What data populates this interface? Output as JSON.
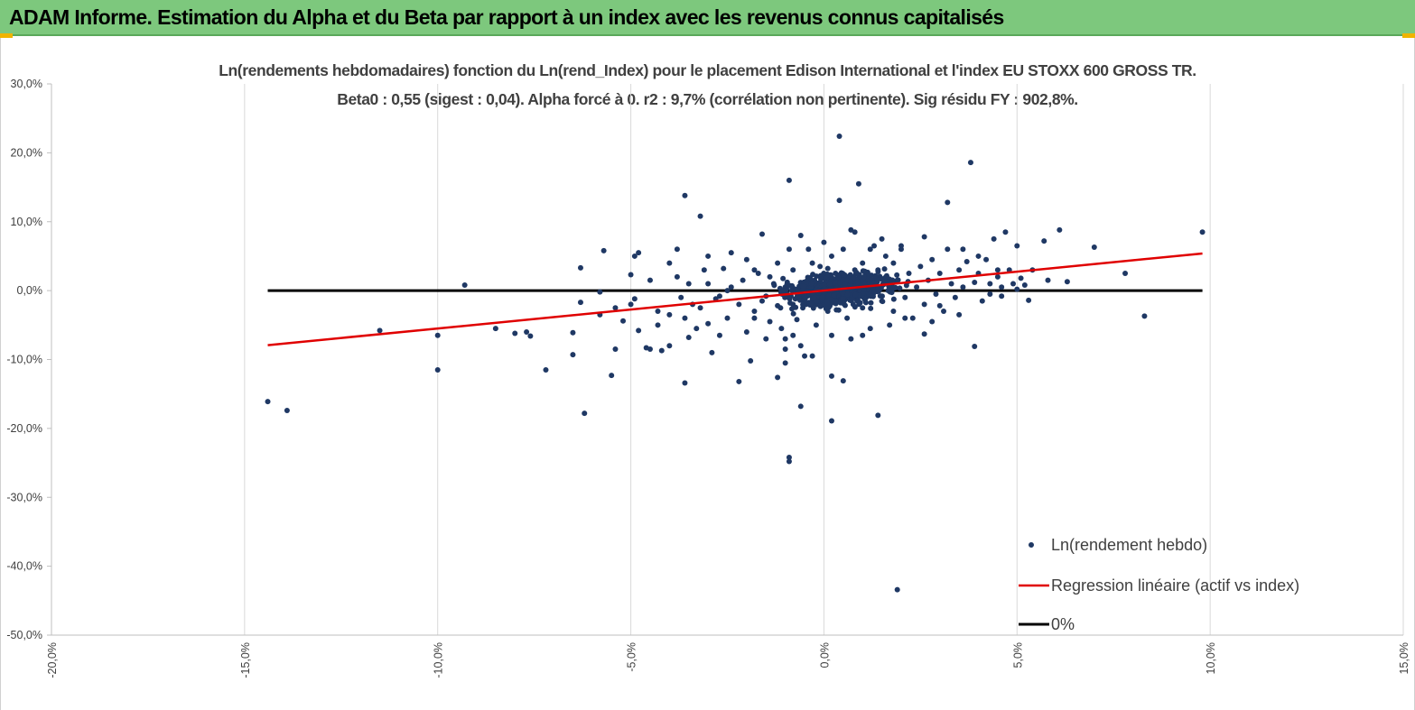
{
  "banner": {
    "title": "ADAM Informe. Estimation du Alpha et du Beta par rapport à un index avec les revenus connus capitalisés"
  },
  "colors": {
    "banner": "#7dc87d",
    "points": "#1f3864",
    "regression": "#e00000",
    "zero": "#000000",
    "grid": "#d9d9d9"
  },
  "chart_data": {
    "type": "scatter",
    "title": "Ln(rendements hebdomadaires) fonction du Ln(rend_Index) pour le placement Edison International et l'index EU STOXX 600 GROSS TR.",
    "subtitle": "Beta0 : 0,55 (sigest : 0,04).  Alpha forcé à 0. r2 : 9,7% (corrélation non pertinente). Sig résidu FY : 902,8%.",
    "xlabel": "",
    "ylabel": "",
    "xlim": [
      -0.2,
      0.15
    ],
    "ylim": [
      -0.5,
      0.3
    ],
    "x_ticks": [
      -0.2,
      -0.15,
      -0.1,
      -0.05,
      0.0,
      0.05,
      0.1,
      0.15
    ],
    "y_ticks": [
      0.3,
      0.2,
      0.1,
      0.0,
      -0.1,
      -0.2,
      -0.3,
      -0.4,
      -0.5
    ],
    "x_tick_labels": [
      "-20,0%",
      "-15,0%",
      "-10,0%",
      "-5,0%",
      "0,0%",
      "5,0%",
      "10,0%",
      "15,0%"
    ],
    "y_tick_labels": [
      "30,0%",
      "20,0%",
      "10,0%",
      "0,0%",
      "-10,0%",
      "-20,0%",
      "-30,0%",
      "-40,0%",
      "-50,0%"
    ],
    "grid": "vertical",
    "legend_position": "bottom-right",
    "series": [
      {
        "name": "Ln(rendement hebdo)",
        "kind": "scatter",
        "points": [
          [
            -0.144,
            -0.161
          ],
          [
            -0.139,
            -0.174
          ],
          [
            -0.115,
            -0.058
          ],
          [
            -0.1,
            -0.065
          ],
          [
            -0.1,
            -0.115
          ],
          [
            -0.093,
            0.008
          ],
          [
            -0.085,
            -0.055
          ],
          [
            -0.08,
            -0.062
          ],
          [
            -0.077,
            -0.06
          ],
          [
            -0.076,
            -0.066
          ],
          [
            -0.072,
            -0.115
          ],
          [
            -0.065,
            -0.061
          ],
          [
            -0.065,
            -0.093
          ],
          [
            -0.063,
            0.033
          ],
          [
            -0.063,
            -0.017
          ],
          [
            -0.062,
            -0.178
          ],
          [
            -0.058,
            -0.035
          ],
          [
            -0.058,
            -0.002
          ],
          [
            -0.057,
            0.058
          ],
          [
            -0.055,
            -0.123
          ],
          [
            -0.054,
            -0.025
          ],
          [
            -0.054,
            -0.085
          ],
          [
            -0.052,
            -0.044
          ],
          [
            -0.05,
            0.023
          ],
          [
            -0.05,
            -0.02
          ],
          [
            -0.049,
            -0.012
          ],
          [
            -0.048,
            -0.058
          ],
          [
            -0.046,
            -0.083
          ],
          [
            -0.045,
            -0.085
          ],
          [
            -0.049,
            0.05
          ],
          [
            -0.048,
            0.055
          ],
          [
            -0.045,
            0.015
          ],
          [
            -0.043,
            -0.03
          ],
          [
            -0.043,
            -0.05
          ],
          [
            -0.042,
            -0.087
          ],
          [
            -0.04,
            -0.08
          ],
          [
            -0.04,
            -0.035
          ],
          [
            -0.038,
            0.02
          ],
          [
            -0.037,
            -0.01
          ],
          [
            -0.036,
            -0.04
          ],
          [
            -0.035,
            -0.068
          ],
          [
            -0.034,
            -0.02
          ],
          [
            -0.033,
            -0.055
          ],
          [
            -0.032,
            -0.025
          ],
          [
            -0.03,
            0.01
          ],
          [
            -0.03,
            -0.048
          ],
          [
            -0.028,
            -0.012
          ],
          [
            -0.025,
            0.0
          ],
          [
            -0.036,
            0.138
          ],
          [
            -0.032,
            0.108
          ],
          [
            -0.029,
            -0.09
          ],
          [
            -0.036,
            -0.134
          ],
          [
            -0.04,
            0.04
          ],
          [
            -0.038,
            0.06
          ],
          [
            -0.035,
            0.01
          ],
          [
            -0.03,
            0.05
          ],
          [
            -0.027,
            -0.008
          ],
          [
            -0.026,
            0.032
          ],
          [
            -0.025,
            -0.04
          ],
          [
            -0.024,
            0.005
          ],
          [
            -0.022,
            -0.02
          ],
          [
            -0.021,
            0.015
          ],
          [
            -0.02,
            -0.06
          ],
          [
            -0.019,
            -0.102
          ],
          [
            -0.018,
            -0.03
          ],
          [
            -0.017,
            0.025
          ],
          [
            -0.016,
            0.082
          ],
          [
            -0.015,
            -0.008
          ],
          [
            -0.014,
            -0.045
          ],
          [
            -0.013,
            0.01
          ],
          [
            -0.012,
            -0.022
          ],
          [
            -0.015,
            -0.07
          ],
          [
            -0.022,
            -0.132
          ],
          [
            -0.02,
            0.045
          ],
          [
            -0.018,
            0.03
          ],
          [
            -0.016,
            -0.015
          ],
          [
            -0.014,
            0.02
          ],
          [
            -0.012,
            -0.126
          ],
          [
            -0.011,
            -0.055
          ],
          [
            -0.01,
            0.005
          ],
          [
            -0.01,
            -0.07
          ],
          [
            -0.009,
            0.06
          ],
          [
            -0.008,
            -0.02
          ],
          [
            -0.008,
            0.03
          ],
          [
            -0.007,
            -0.042
          ],
          [
            -0.009,
            0.16
          ],
          [
            -0.009,
            -0.248
          ],
          [
            -0.009,
            -0.242
          ],
          [
            -0.006,
            0.08
          ],
          [
            -0.006,
            -0.168
          ],
          [
            -0.01,
            -0.085
          ],
          [
            -0.01,
            -0.105
          ],
          [
            -0.005,
            -0.095
          ],
          [
            -0.003,
            -0.095
          ],
          [
            -0.004,
            0.012
          ],
          [
            -0.003,
            0.04
          ],
          [
            -0.002,
            -0.05
          ],
          [
            -0.002,
            0.01
          ],
          [
            -0.001,
            -0.02
          ],
          [
            -0.001,
            0.035
          ],
          [
            0.0,
            -0.005
          ],
          [
            0.001,
            0.02
          ],
          [
            0.001,
            -0.03
          ],
          [
            0.002,
            0.05
          ],
          [
            0.002,
            -0.065
          ],
          [
            0.002,
            -0.124
          ],
          [
            0.002,
            -0.189
          ],
          [
            0.003,
            0.005
          ],
          [
            0.003,
            0.025
          ],
          [
            0.004,
            -0.01
          ],
          [
            0.004,
            0.224
          ],
          [
            0.004,
            0.131
          ],
          [
            0.005,
            -0.131
          ],
          [
            0.005,
            0.06
          ],
          [
            0.006,
            -0.04
          ],
          [
            0.006,
            0.015
          ],
          [
            0.007,
            0.088
          ],
          [
            0.007,
            -0.07
          ],
          [
            0.008,
            0.03
          ],
          [
            0.008,
            -0.01
          ],
          [
            0.009,
            0.155
          ],
          [
            0.009,
            0.005
          ],
          [
            0.01,
            0.04
          ],
          [
            0.01,
            -0.025
          ],
          [
            0.011,
            0.02
          ],
          [
            0.012,
            -0.055
          ],
          [
            0.013,
            0.065
          ],
          [
            0.013,
            0.0
          ],
          [
            0.014,
            -0.181
          ],
          [
            0.014,
            0.03
          ],
          [
            0.015,
            -0.015
          ],
          [
            0.016,
            0.05
          ],
          [
            0.017,
            0.01
          ],
          [
            0.018,
            -0.03
          ],
          [
            0.018,
            0.04
          ],
          [
            0.019,
            -0.434
          ],
          [
            0.019,
            0.015
          ],
          [
            0.02,
            0.06
          ],
          [
            0.021,
            -0.01
          ],
          [
            0.022,
            0.025
          ],
          [
            0.023,
            -0.04
          ],
          [
            0.024,
            0.005
          ],
          [
            0.025,
            0.035
          ],
          [
            0.026,
            -0.02
          ],
          [
            0.026,
            0.078
          ],
          [
            0.026,
            -0.063
          ],
          [
            0.027,
            0.015
          ],
          [
            0.028,
            0.045
          ],
          [
            0.029,
            -0.005
          ],
          [
            0.03,
            0.025
          ],
          [
            0.031,
            -0.03
          ],
          [
            0.032,
            0.128
          ],
          [
            0.032,
            0.06
          ],
          [
            0.033,
            0.01
          ],
          [
            0.034,
            -0.01
          ],
          [
            0.035,
            0.03
          ],
          [
            0.036,
            0.005
          ],
          [
            0.037,
            0.042
          ],
          [
            0.038,
            0.186
          ],
          [
            0.039,
            -0.081
          ],
          [
            0.039,
            0.012
          ],
          [
            0.04,
            0.025
          ],
          [
            0.041,
            -0.015
          ],
          [
            0.042,
            0.045
          ],
          [
            0.043,
            0.01
          ],
          [
            0.044,
            0.075
          ],
          [
            0.045,
            0.02
          ],
          [
            0.046,
            0.005
          ],
          [
            0.047,
            0.085
          ],
          [
            0.048,
            0.03
          ],
          [
            0.049,
            0.01
          ],
          [
            0.05,
            0.065
          ],
          [
            0.051,
            0.018
          ],
          [
            0.052,
            0.008
          ],
          [
            0.053,
            -0.014
          ],
          [
            0.054,
            0.03
          ],
          [
            0.057,
            0.072
          ],
          [
            0.058,
            0.015
          ],
          [
            0.061,
            0.088
          ],
          [
            0.063,
            0.013
          ],
          [
            0.07,
            0.063
          ],
          [
            0.078,
            0.025
          ],
          [
            0.083,
            -0.037
          ],
          [
            0.098,
            0.085
          ],
          [
            0.045,
            0.03
          ],
          [
            0.05,
            0.002
          ],
          [
            0.043,
            -0.005
          ],
          [
            0.036,
            0.06
          ],
          [
            0.04,
            0.05
          ],
          [
            0.03,
            -0.022
          ],
          [
            0.028,
            -0.045
          ],
          [
            0.02,
            0.065
          ],
          [
            0.015,
            0.075
          ],
          [
            0.012,
            0.06
          ],
          [
            0.008,
            0.085
          ],
          [
            0.0,
            0.07
          ],
          [
            -0.004,
            0.06
          ],
          [
            -0.008,
            -0.065
          ],
          [
            -0.012,
            0.04
          ],
          [
            -0.018,
            -0.04
          ],
          [
            -0.024,
            0.055
          ],
          [
            -0.027,
            -0.065
          ],
          [
            -0.006,
            -0.08
          ],
          [
            0.01,
            -0.065
          ],
          [
            0.017,
            -0.05
          ],
          [
            0.021,
            -0.04
          ],
          [
            -0.031,
            0.03
          ],
          [
            0.035,
            -0.035
          ],
          [
            0.046,
            -0.008
          ]
        ]
      },
      {
        "name": "Regression linéaire (actif vs index)",
        "kind": "line",
        "slope": 0.55,
        "x_range": [
          -0.144,
          0.098
        ]
      },
      {
        "name": "0%",
        "kind": "line",
        "y": 0.0,
        "x_range": [
          -0.144,
          0.098
        ]
      }
    ]
  }
}
